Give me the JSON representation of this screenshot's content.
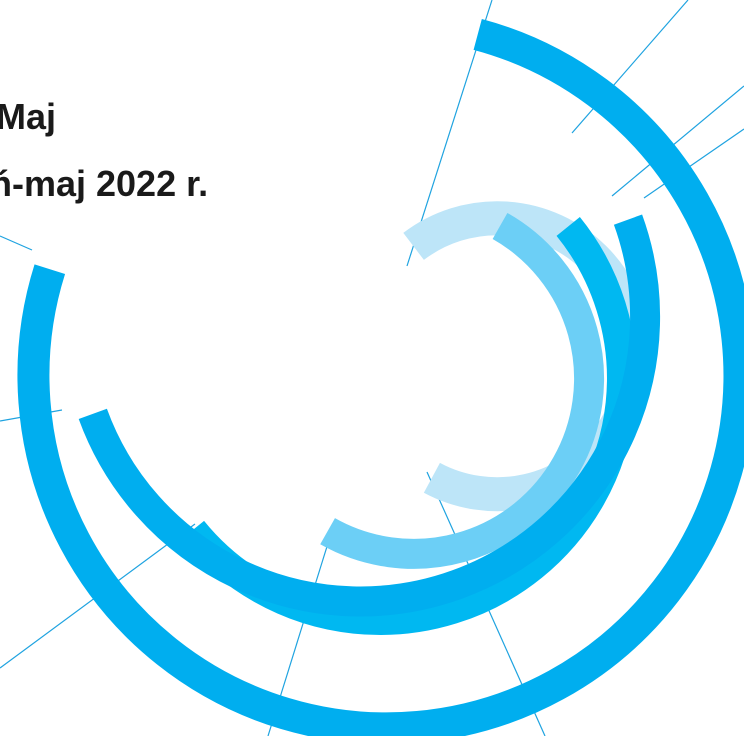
{
  "title": {
    "line_1": "Maj",
    "line_2": "ń-maj 2022 r."
  },
  "colors": {
    "background": "#ffffff",
    "text": "#1a1a1a",
    "arc_darkest": "#00aeef",
    "arc_bright": "#00b8f1",
    "arc_medium": "#6ccff6",
    "arc_light": "#bde5f8",
    "thin_line": "#1fa3e0"
  }
}
